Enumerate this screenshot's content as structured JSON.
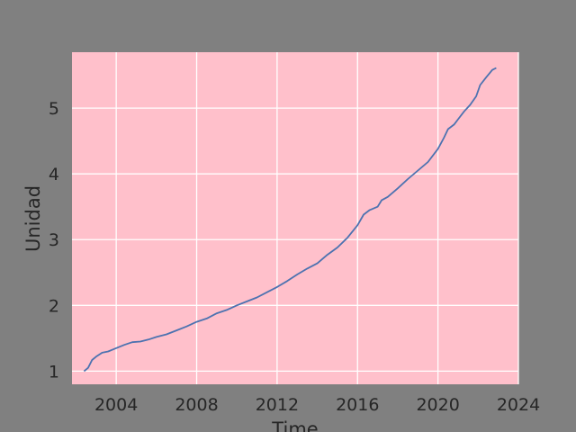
{
  "chart_data": {
    "type": "line",
    "title": "",
    "xlabel": "Time",
    "ylabel": "Unidad",
    "xlim": [
      2001.8,
      2024.0
    ],
    "ylim": [
      0.8,
      5.85
    ],
    "xticks": [
      2004,
      2008,
      2012,
      2016,
      2020,
      2024
    ],
    "xtick_labels": [
      "2004",
      "2008",
      "2012",
      "2016",
      "2020",
      "2024"
    ],
    "yticks": [
      1,
      2,
      3,
      4,
      5
    ],
    "ytick_labels": [
      "1",
      "2",
      "3",
      "4",
      "5"
    ],
    "grid": true,
    "legend": "none",
    "background_color": "#FFC0CB",
    "figure_color": "#808080",
    "grid_color": "#FFFFFF",
    "line_color": "#4C72B0",
    "series": [
      {
        "x": [
          2002.4,
          2002.6,
          2002.8,
          2003.0,
          2003.3,
          2003.6,
          2004.0,
          2004.4,
          2004.8,
          2005.2,
          2005.6,
          2006.0,
          2006.5,
          2007.0,
          2007.5,
          2008.0,
          2008.5,
          2009.0,
          2009.5,
          2010.0,
          2010.5,
          2011.0,
          2011.5,
          2012.0,
          2012.5,
          2013.0,
          2013.5,
          2014.0,
          2014.5,
          2015.0,
          2015.5,
          2016.0,
          2016.3,
          2016.6,
          2017.0,
          2017.2,
          2017.5,
          2018.0,
          2018.5,
          2019.0,
          2019.5,
          2020.0,
          2020.3,
          2020.5,
          2020.8,
          2021.0,
          2021.3,
          2021.6,
          2021.9,
          2022.1,
          2022.4,
          2022.7,
          2022.9
        ],
        "y": [
          1.0,
          1.05,
          1.17,
          1.22,
          1.28,
          1.3,
          1.35,
          1.4,
          1.44,
          1.45,
          1.48,
          1.52,
          1.56,
          1.62,
          1.68,
          1.75,
          1.8,
          1.88,
          1.93,
          2.0,
          2.06,
          2.12,
          2.2,
          2.28,
          2.37,
          2.47,
          2.56,
          2.64,
          2.77,
          2.88,
          3.03,
          3.22,
          3.38,
          3.45,
          3.5,
          3.6,
          3.65,
          3.78,
          3.92,
          4.05,
          4.18,
          4.38,
          4.55,
          4.68,
          4.75,
          4.83,
          4.95,
          5.05,
          5.18,
          5.35,
          5.47,
          5.58,
          5.61
        ]
      }
    ]
  }
}
